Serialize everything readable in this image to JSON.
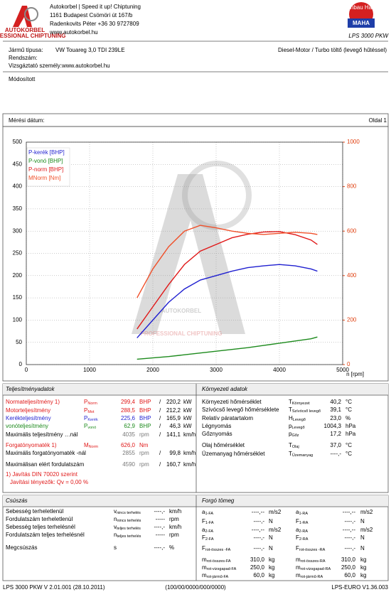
{
  "header": {
    "logo_name": "AUTOKORBEL",
    "logo_tagline": "PROFESSIONAL CHIPTUNING",
    "company_lines": [
      "Autokorbel | Speed it up! Chiptuning",
      "1161 Budapest Csömöri út 167/b",
      "Radenkovits Péter +36 30 9727809",
      "www.autokorbel.hu"
    ],
    "maha_ring": "Maschinenbau Haldenwang",
    "maha": "MAHA",
    "product": "LPS 3000 PKW"
  },
  "vehicle": {
    "type_label": "Jármű típusa:",
    "type_value": "VW Touareg 3,0 TDI 239LE",
    "engine": "Diesel-Motor / Turbo töltő (levegő hűtéssel)",
    "plate_label": "Rendszám:",
    "examiner": "Vizsgáztató személy:www.autokorbel.hu",
    "note": "Módosított",
    "date_label": "Mérési dátum:",
    "page": "Oldal 1"
  },
  "chart_data": {
    "type": "line",
    "x_label": "n [rpm]",
    "x": [
      1750,
      2000,
      2250,
      2500,
      2750,
      3000,
      3250,
      3500,
      3750,
      4000,
      4250,
      4500,
      4600
    ],
    "series": [
      {
        "name": "P-kerék [BHP]",
        "color": "#1f1fd0",
        "values": [
          60,
          100,
          140,
          170,
          190,
          200,
          210,
          218,
          222,
          225,
          222,
          215,
          210
        ]
      },
      {
        "name": "P-vonó [BHP]",
        "color": "#1c8a1c",
        "values": [
          12,
          15,
          18,
          22,
          26,
          30,
          34,
          38,
          43,
          48,
          53,
          58,
          62
        ]
      },
      {
        "name": "P-norm [BHP]",
        "color": "#e01818",
        "values": [
          80,
          130,
          180,
          225,
          255,
          270,
          285,
          293,
          298,
          299,
          292,
          280,
          270
        ]
      },
      {
        "name": "MNorm [Nm]",
        "color": "#f0502a",
        "axis": "y2",
        "values": [
          300,
          430,
          530,
          600,
          626,
          615,
          600,
          590,
          585,
          590,
          595,
          590,
          585
        ]
      }
    ],
    "xlim": [
      0,
      5000
    ],
    "xticks": [
      0,
      1000,
      2000,
      3000,
      4000,
      5000
    ],
    "ylim": [
      0,
      500
    ],
    "yticks": [
      0,
      50,
      100,
      150,
      200,
      250,
      300,
      350,
      400,
      450,
      500
    ],
    "y2lim": [
      0,
      1000
    ],
    "y2ticks": [
      0,
      200,
      400,
      600,
      800,
      1000
    ],
    "y2_color": "#e04010",
    "grid": true,
    "legend": "top-left"
  },
  "performance": {
    "title": "Teljesítményadatok",
    "rows": [
      {
        "label": "Normateljesítmény 1)",
        "sym": "P",
        "sub": "Norm",
        "v1": "299,4",
        "u1": "BHP",
        "sep": "/",
        "v2": "220,2",
        "u2": "kW",
        "color": "#e01818"
      },
      {
        "label": "Motorteljesítmény",
        "sym": "P",
        "sub": "Mot",
        "v1": "288,5",
        "u1": "BHP",
        "sep": "/",
        "v2": "212,2",
        "u2": "kW",
        "color": "#e01818"
      },
      {
        "label": "Keréktelјesítmény",
        "sym": "P",
        "sub": "Kerék",
        "v1": "225,6",
        "u1": "BHP",
        "sep": "/",
        "v2": "165,9",
        "u2": "kW",
        "color": "#1f1fd0"
      },
      {
        "label": "vonóteljesítmény",
        "sym": "P",
        "sub": "vonó",
        "v1": "62,9",
        "u1": "BHP",
        "sep": "/",
        "v2": "46,3",
        "u2": "kW",
        "color": "#1c8a1c"
      },
      {
        "label": "Maximális teljesítmény …nál",
        "v1": "4035",
        "u1": "rpm",
        "sep": "/",
        "v2": "141,1",
        "u2": "km/h",
        "color": "#000"
      },
      {
        "label": "Forgatónyomaték 1)",
        "sym": "M",
        "sub": "Norm",
        "v1": "626,0",
        "u1": "Nm",
        "color": "#e01818"
      },
      {
        "label": "Maximális forgatónyomaték -nál",
        "v1": "2855",
        "u1": "rpm",
        "sep": "/",
        "v2": "99,8",
        "u2": "km/h",
        "color": "#000"
      },
      {
        "label": "Maximálisan elért fordulatszám",
        "v1": "4590",
        "u1": "rpm",
        "sep": "/",
        "v2": "160,7",
        "u2": "km/h",
        "color": "#000"
      },
      {
        "label": "1) Javítás DIN 70020 szerint",
        "color": "#e01818"
      },
      {
        "label": "Javítási tényezők: Qv =   0,00 %",
        "color": "#e01818"
      }
    ]
  },
  "environment": {
    "title": "Környezeti adatok",
    "rows": [
      {
        "label": "Környezeti hőmérséklet",
        "sym": "T",
        "sub": "Környezet",
        "v1": "40,2",
        "u1": "°C"
      },
      {
        "label": "Szívócső levegő hőmérséklete",
        "sym": "T",
        "sub": "Szívócső levegő",
        "v1": "39,1",
        "u1": "°C"
      },
      {
        "label": "Relatív páratartalom",
        "sym": "H",
        "sub": "Levegő",
        "v1": "23,0",
        "u1": "%"
      },
      {
        "label": "Légnyomás",
        "sym": "p",
        "sub": "Levegő",
        "v1": "1004,3",
        "u1": "hPa"
      },
      {
        "label": "Gőznyomás",
        "sym": "p",
        "sub": "Gőz",
        "v1": "17,2",
        "u1": "hPa"
      },
      {
        "label": "Olaj hőmérséklet",
        "sym": "T",
        "sub": "Olaj",
        "v1": "37,0",
        "u1": "°C"
      },
      {
        "label": "Üzemanyag hőmérséklet",
        "sym": "T",
        "sub": "Üzemanyag",
        "v1": "----,-",
        "u1": "°C"
      }
    ]
  },
  "slip": {
    "title": "Csúszás",
    "rows": [
      {
        "label": "Sebesség terheletlenül",
        "sym": "v",
        "sub": "nincs terhelés",
        "v1": "----,-",
        "u1": "km/h"
      },
      {
        "label": "Fordulatszám terheletlenül",
        "sym": "n",
        "sub": "nincs terhelés",
        "v1": "-----",
        "u1": "rpm"
      },
      {
        "label": "Sebesség teljes terhelésnél",
        "sym": "v",
        "sub": "teljes terhelés",
        "v1": "----,-",
        "u1": "km/h"
      },
      {
        "label": "Fordulatszám teljes terhelésnél",
        "sym": "n",
        "sub": "teljes terhelés",
        "v1": "-----",
        "u1": "rpm"
      },
      {
        "label": "Megcsúszás",
        "sym": "s",
        "v1": "----,-",
        "u1": "%"
      }
    ]
  },
  "rotating_mass": {
    "title": "Forgó tömeg",
    "rows": [
      {
        "a": {
          "sym": "a",
          "sub": "1-FA",
          "v": "----,--",
          "u": "m/s2"
        },
        "b": {
          "sym": "a",
          "sub": "1-RA",
          "v": "----,--",
          "u": "m/s2"
        }
      },
      {
        "a": {
          "sym": "F",
          "sub": "1-FA",
          "v": "----,-",
          "u": "N"
        },
        "b": {
          "sym": "F",
          "sub": "1-RA",
          "v": "----,-",
          "u": "N"
        }
      },
      {
        "a": {
          "sym": "a",
          "sub": "2-FA",
          "v": "----,--",
          "u": "m/s2"
        },
        "b": {
          "sym": "a",
          "sub": "2-RA",
          "v": "----,--",
          "u": "m/s2"
        }
      },
      {
        "a": {
          "sym": "F",
          "sub": "2-FA",
          "v": "----,-",
          "u": "N"
        },
        "b": {
          "sym": "F",
          "sub": "2-RA",
          "v": "----,-",
          "u": "N"
        }
      },
      {
        "a": {
          "sym": "F",
          "sub": "rot-összes -FA",
          "v": "----,-",
          "u": "N"
        },
        "b": {
          "sym": "F",
          "sub": "rot-összes -RA",
          "v": "----,-",
          "u": "N"
        }
      },
      {
        "a": {
          "sym": "m",
          "sub": "rot-összes-FA",
          "v": "310,0",
          "u": "kg"
        },
        "b": {
          "sym": "m",
          "sub": "rot-összes-RA",
          "v": "310,0",
          "u": "kg"
        }
      },
      {
        "a": {
          "sym": "m",
          "sub": "rot-vizsgapad-FA",
          "v": "250,0",
          "u": "kg"
        },
        "b": {
          "sym": "m",
          "sub": "rot-vizsgapad-RA",
          "v": "250,0",
          "u": "kg"
        }
      },
      {
        "a": {
          "sym": "m",
          "sub": "rot-jármű-FA",
          "v": "60,0",
          "u": "kg"
        },
        "b": {
          "sym": "m",
          "sub": "rot-jármű-RA",
          "v": "60,0",
          "u": "kg"
        }
      }
    ]
  },
  "footer": {
    "left": "LPS 3000 PKW V 2.01.001 (28.10.2011)",
    "center": "(100/00/0000/000/0000)",
    "right": "LPS-EURO V1.36.003"
  }
}
